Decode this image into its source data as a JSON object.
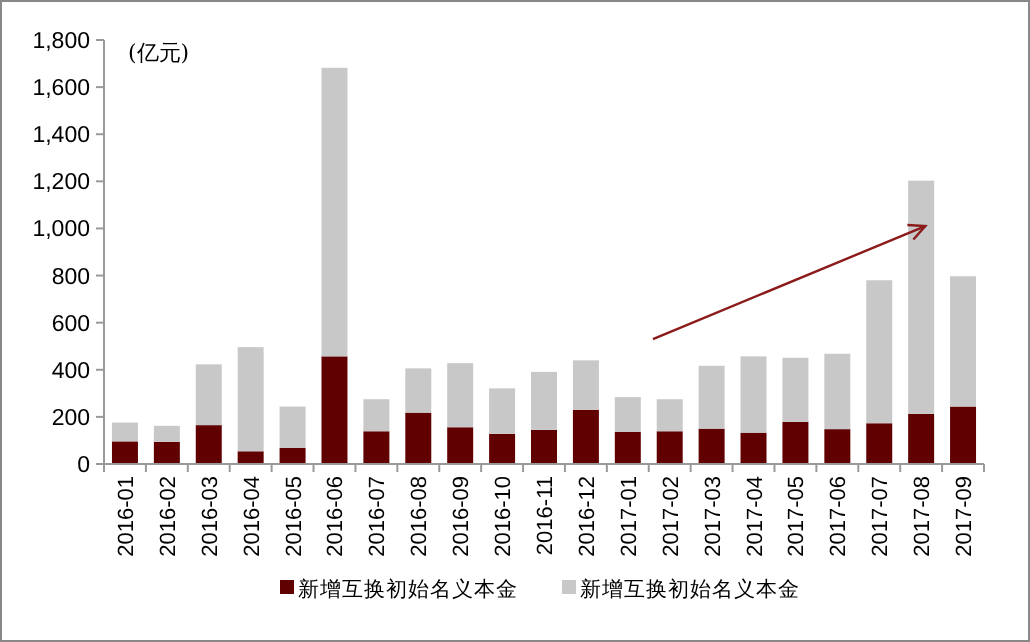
{
  "chart_data": {
    "type": "bar",
    "stacked": true,
    "ylabel": "(亿元)",
    "categories": [
      "2016-01",
      "2016-02",
      "2016-03",
      "2016-04",
      "2016-05",
      "2016-06",
      "2016-07",
      "2016-08",
      "2016-09",
      "2016-10",
      "2016-11",
      "2016-12",
      "2017-01",
      "2017-02",
      "2017-03",
      "2017-04",
      "2017-05",
      "2017-06",
      "2017-07",
      "2017-08",
      "2017-09"
    ],
    "series": [
      {
        "name": "新增互换初始名义本金",
        "color": "#600000",
        "values": [
          96,
          94,
          165,
          54,
          68,
          457,
          139,
          218,
          156,
          128,
          145,
          230,
          136,
          139,
          150,
          133,
          179,
          148,
          173,
          213,
          244
        ]
      },
      {
        "name": "新增互换初始名义本金",
        "color": "#c8c8c8",
        "values": [
          80,
          68,
          258,
          442,
          176,
          1225,
          136,
          188,
          272,
          193,
          246,
          210,
          148,
          136,
          267,
          324,
          272,
          320,
          607,
          990,
          553
        ]
      }
    ],
    "ylim": [
      0,
      1800
    ],
    "yticks": [
      0,
      200,
      400,
      600,
      800,
      {
        "value": 1000,
        "label": "1,000"
      },
      {
        "value": 1200,
        "label": "1,200"
      },
      {
        "value": 1400,
        "label": "1,400"
      },
      {
        "value": 1600,
        "label": "1,600"
      },
      {
        "value": 1800,
        "label": "1,800"
      }
    ],
    "grid": false,
    "legend": "bottom"
  }
}
